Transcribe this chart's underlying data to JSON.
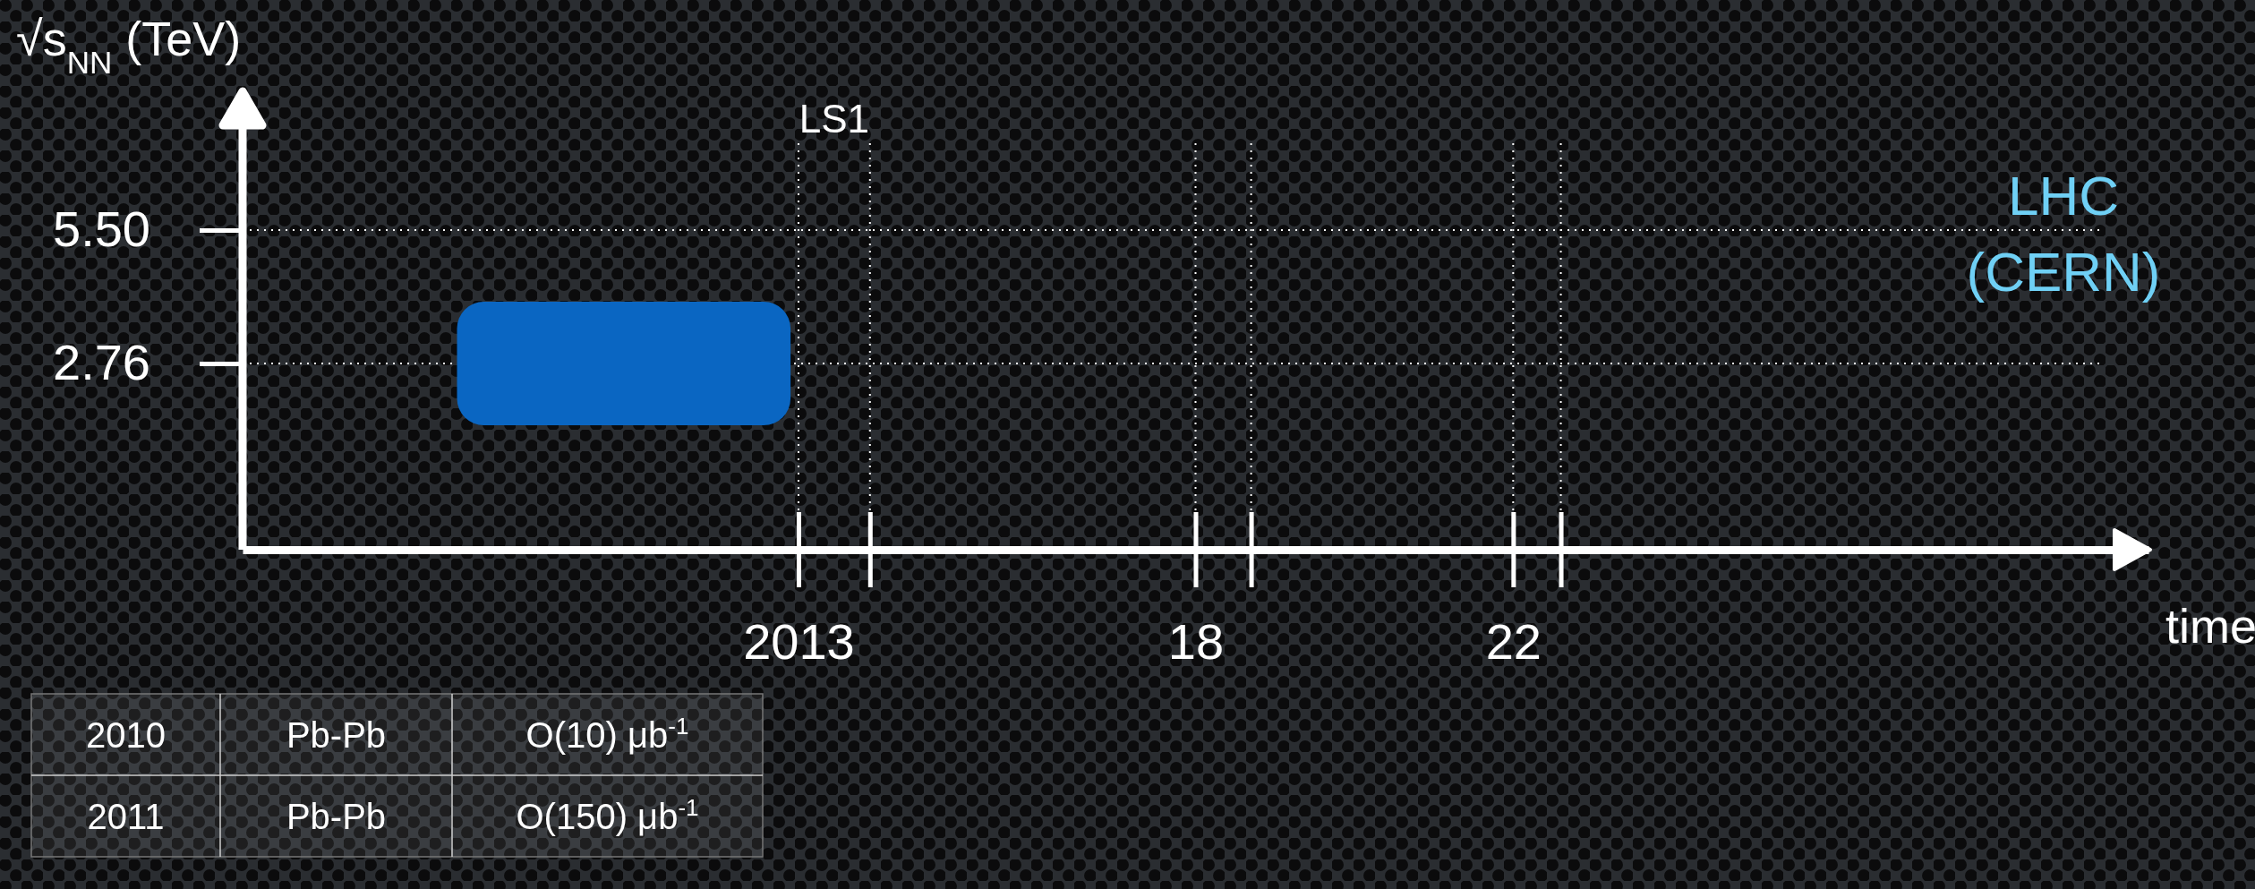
{
  "chart_data": {
    "type": "bar",
    "orientation": "horizontal",
    "ylabel": "√s$_{NN}$ (TeV)",
    "xlabel": "time",
    "categories": [
      "5.50",
      "2.76"
    ],
    "values": [
      null,
      4.2
    ],
    "base": [
      null,
      2008.7
    ],
    "color": "#0a66c2",
    "xlim": [
      2006,
      2030
    ],
    "xticks": [
      {
        "value": 2013,
        "label": "2013"
      },
      {
        "value": 2013.9,
        "label": null
      },
      {
        "value": 2018,
        "label": "18"
      },
      {
        "value": 2018.7,
        "label": null
      },
      {
        "value": 2022,
        "label": "22"
      },
      {
        "value": 2022.6,
        "label": null
      }
    ],
    "grid": "y",
    "ref_lines": [
      {
        "axis": "x",
        "value": 2013,
        "label": "LS1",
        "color": "#ffffff",
        "line_style": "dotted"
      },
      {
        "axis": "x",
        "value": 2013.9,
        "color": "#ffffff",
        "line_style": "dotted"
      },
      {
        "axis": "x",
        "value": 2018,
        "color": "#ffffff",
        "line_style": "dotted"
      },
      {
        "axis": "x",
        "value": 2018.7,
        "color": "#ffffff",
        "line_style": "dotted"
      },
      {
        "axis": "x",
        "value": 2022,
        "color": "#ffffff",
        "line_style": "dotted"
      },
      {
        "axis": "x",
        "value": 2022.6,
        "color": "#ffffff",
        "line_style": "dotted"
      }
    ],
    "annotations": [
      "LHC (CERN)",
      "2010",
      "Pb-Pb",
      "O(10) μb$^{-1}$",
      "2011",
      "Pb-Pb",
      "O(150) μb$^{-1}$"
    ]
  }
}
